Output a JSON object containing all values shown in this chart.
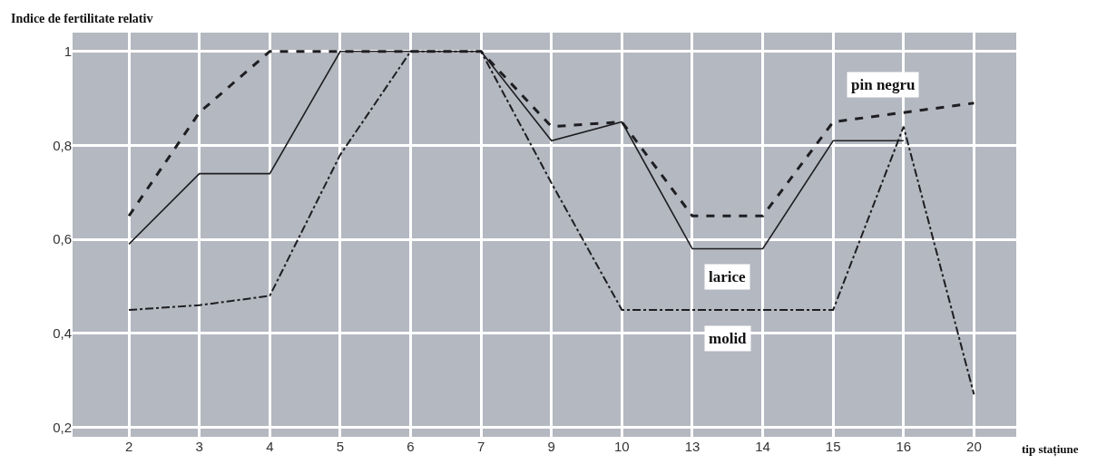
{
  "chart_data": {
    "type": "line",
    "ylabel": "Indice de fertilitate relativ",
    "xlabel": "tip stațiune",
    "categories": [
      "2",
      "3",
      "4",
      "5",
      "6",
      "7",
      "9",
      "10",
      "13",
      "14",
      "15",
      "16",
      "20"
    ],
    "series": [
      {
        "name": "pin negru",
        "color": "#1e1e22",
        "line_style": "dashed",
        "values": [
          0.65,
          0.87,
          1,
          1,
          1,
          1,
          0.84,
          0.85,
          0.65,
          0.65,
          0.85,
          0.87,
          0.89
        ]
      },
      {
        "name": "larice",
        "color": "#1e1e22",
        "line_style": "solid",
        "values": [
          0.59,
          0.74,
          0.74,
          1,
          1,
          1,
          0.81,
          0.85,
          0.58,
          0.58,
          0.81,
          0.81,
          null
        ]
      },
      {
        "name": "molid",
        "color": "#1e1e22",
        "line_style": "dashdot",
        "values": [
          0.45,
          0.46,
          0.48,
          0.78,
          1,
          1,
          0.72,
          0.45,
          0.45,
          0.45,
          0.45,
          0.84,
          0.27
        ]
      }
    ],
    "ylim": [
      0.18,
      1.04
    ],
    "yticks": [
      {
        "value": 0.2,
        "label": "0,2"
      },
      {
        "value": 0.4,
        "label": "0,4"
      },
      {
        "value": 0.6,
        "label": "0,6"
      },
      {
        "value": 0.8,
        "label": "0,8"
      },
      1
    ],
    "grid": true,
    "legend": false,
    "marker": "none"
  }
}
